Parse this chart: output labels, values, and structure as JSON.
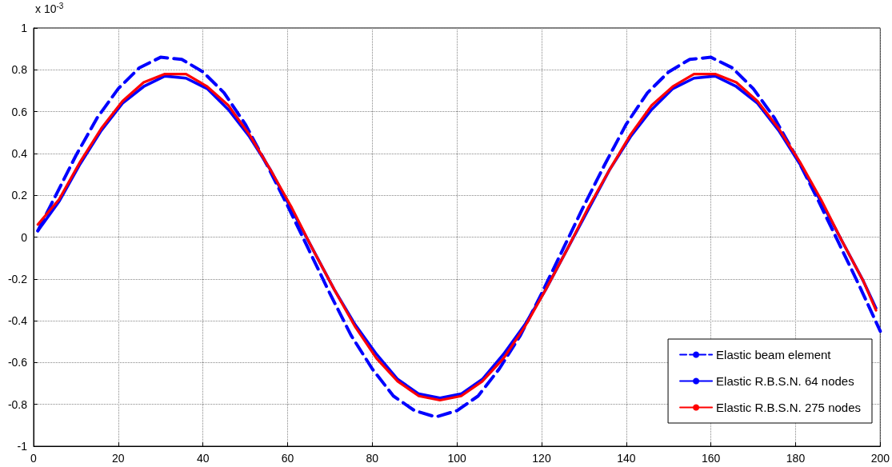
{
  "chart_data": {
    "type": "line",
    "annotations": [
      "x 10$^{-3}$"
    ],
    "xlim": [
      0,
      200
    ],
    "xticks": [
      0,
      20,
      40,
      60,
      80,
      100,
      120,
      140,
      160,
      180,
      200
    ],
    "ylim": [
      -1,
      1
    ],
    "yticks": [
      -1,
      -0.8,
      -0.6,
      -0.4,
      -0.2,
      0,
      0.2,
      0.4,
      0.6,
      0.8,
      1
    ],
    "grid": true,
    "legend": "bottom right",
    "marker": "none",
    "series": [
      {
        "name": "Elastic beam element",
        "color": "#0000ff",
        "line_style": "dashed",
        "x": [
          1,
          5,
          10,
          15,
          20,
          25,
          30,
          35,
          40,
          45,
          50,
          55,
          60,
          65,
          70,
          75,
          80,
          85,
          90,
          95,
          100,
          105,
          110,
          115,
          120,
          125,
          130,
          135,
          140,
          145,
          150,
          155,
          160,
          165,
          170,
          175,
          180,
          185,
          190,
          195,
          200
        ],
        "values": [
          0.03,
          0.19,
          0.39,
          0.57,
          0.71,
          0.81,
          0.86,
          0.85,
          0.79,
          0.69,
          0.54,
          0.35,
          0.15,
          -0.06,
          -0.27,
          -0.47,
          -0.63,
          -0.76,
          -0.83,
          -0.86,
          -0.83,
          -0.76,
          -0.63,
          -0.47,
          -0.27,
          -0.06,
          0.15,
          0.35,
          0.54,
          0.69,
          0.79,
          0.85,
          0.86,
          0.81,
          0.71,
          0.57,
          0.39,
          0.19,
          -0.02,
          -0.23,
          -0.45
        ]
      },
      {
        "name": "Elastic R.B.S.N. 64 nodes",
        "color": "#0000ff",
        "line_style": "solid",
        "x": [
          1,
          6,
          11,
          16,
          21,
          26,
          31,
          36,
          41,
          46,
          51,
          56,
          61,
          66,
          71,
          76,
          81,
          86,
          91,
          96,
          101,
          106,
          111,
          116,
          121,
          126,
          131,
          136,
          141,
          146,
          151,
          156,
          161,
          166,
          171,
          176,
          181,
          186,
          191,
          196,
          199
        ],
        "values": [
          0.03,
          0.17,
          0.35,
          0.51,
          0.64,
          0.72,
          0.77,
          0.76,
          0.71,
          0.61,
          0.48,
          0.32,
          0.13,
          -0.06,
          -0.25,
          -0.42,
          -0.56,
          -0.68,
          -0.75,
          -0.77,
          -0.75,
          -0.68,
          -0.56,
          -0.42,
          -0.25,
          -0.06,
          0.13,
          0.32,
          0.48,
          0.61,
          0.71,
          0.76,
          0.77,
          0.72,
          0.64,
          0.51,
          0.35,
          0.17,
          -0.02,
          -0.21,
          -0.34
        ]
      },
      {
        "name": "Elastic R.B.S.N. 275 nodes",
        "color": "#ff0000",
        "line_style": "solid",
        "x": [
          1,
          6,
          11,
          16,
          21,
          26,
          31,
          36,
          41,
          46,
          51,
          56,
          61,
          66,
          71,
          76,
          81,
          86,
          91,
          96,
          101,
          106,
          111,
          116,
          121,
          126,
          131,
          136,
          141,
          146,
          151,
          156,
          161,
          166,
          171,
          176,
          181,
          186,
          191,
          196,
          199
        ],
        "values": [
          0.06,
          0.18,
          0.36,
          0.52,
          0.65,
          0.74,
          0.78,
          0.78,
          0.72,
          0.63,
          0.49,
          0.32,
          0.14,
          -0.06,
          -0.25,
          -0.43,
          -0.58,
          -0.69,
          -0.76,
          -0.78,
          -0.76,
          -0.69,
          -0.58,
          -0.43,
          -0.25,
          -0.06,
          0.14,
          0.32,
          0.49,
          0.63,
          0.72,
          0.78,
          0.78,
          0.74,
          0.65,
          0.52,
          0.36,
          0.18,
          -0.02,
          -0.21,
          -0.35
        ]
      }
    ]
  }
}
